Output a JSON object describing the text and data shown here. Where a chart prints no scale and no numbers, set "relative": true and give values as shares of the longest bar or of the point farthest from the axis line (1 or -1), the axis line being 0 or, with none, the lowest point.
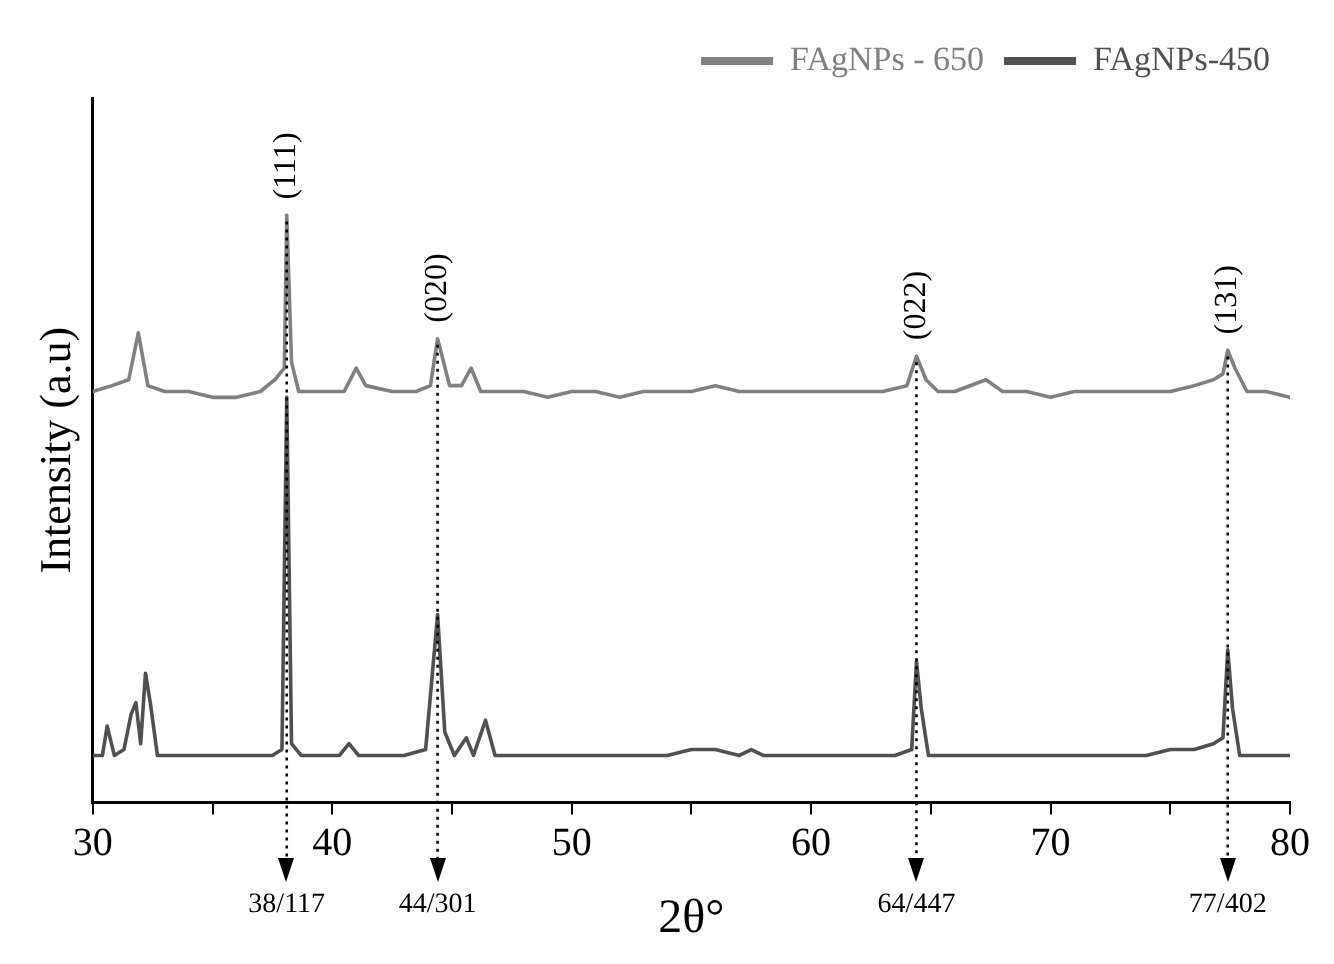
{
  "chart_data": {
    "type": "line",
    "xlabel": "2θ°",
    "ylabel": "Intensity (a.u)",
    "relative": true,
    "xlim": [
      30,
      80
    ],
    "xticks": [
      30,
      {
        "value": 35,
        "label": null
      },
      40,
      {
        "value": 45,
        "label": null
      },
      50,
      {
        "value": 55,
        "label": null
      },
      60,
      {
        "value": 65,
        "label": null
      },
      70,
      {
        "value": 75,
        "label": null
      },
      80
    ],
    "grid": false,
    "legend": "top right",
    "marker": "none",
    "line_style": "solid",
    "series": [
      {
        "name": "FAgNPs - 650",
        "color": "#808080",
        "x": [
          30,
          30.8,
          31.5,
          31.9,
          32.3,
          33,
          34,
          35,
          36,
          37,
          37.6,
          38.0,
          38.1,
          38.3,
          38.6,
          39.5,
          40.5,
          41.0,
          41.4,
          42.5,
          43.5,
          44.1,
          44.4,
          44.9,
          45.4,
          45.8,
          46.2,
          47,
          48,
          49,
          50,
          51,
          52,
          53,
          54,
          55,
          56,
          57,
          58,
          59,
          60,
          61,
          62,
          63,
          64.0,
          64.4,
          64.8,
          65.3,
          66,
          67.3,
          68,
          69,
          70,
          71,
          72,
          73,
          74,
          75,
          76,
          76.8,
          77.2,
          77.4,
          77.7,
          78.2,
          79,
          80
        ],
        "values": [
          0.7,
          0.71,
          0.72,
          0.8,
          0.71,
          0.7,
          0.7,
          0.69,
          0.69,
          0.7,
          0.72,
          0.74,
          1.0,
          0.75,
          0.7,
          0.7,
          0.7,
          0.74,
          0.71,
          0.7,
          0.7,
          0.71,
          0.79,
          0.71,
          0.71,
          0.74,
          0.7,
          0.7,
          0.7,
          0.69,
          0.7,
          0.7,
          0.69,
          0.7,
          0.7,
          0.7,
          0.71,
          0.7,
          0.7,
          0.7,
          0.7,
          0.7,
          0.7,
          0.7,
          0.71,
          0.76,
          0.72,
          0.7,
          0.7,
          0.72,
          0.7,
          0.7,
          0.69,
          0.7,
          0.7,
          0.7,
          0.7,
          0.7,
          0.71,
          0.72,
          0.73,
          0.77,
          0.74,
          0.7,
          0.7,
          0.69
        ]
      },
      {
        "name": "FAgNPs-450",
        "color": "#505050",
        "x": [
          30,
          30.4,
          30.6,
          30.9,
          31.3,
          31.6,
          31.8,
          32.0,
          32.2,
          32.4,
          32.7,
          33.5,
          35,
          36.5,
          37.5,
          37.9,
          38.1,
          38.3,
          38.7,
          39.5,
          40.3,
          40.7,
          41.1,
          42,
          43,
          43.9,
          44.4,
          44.7,
          45.1,
          45.6,
          45.9,
          46.4,
          46.8,
          48,
          50,
          52,
          54,
          55,
          56,
          57,
          57.5,
          58,
          60,
          62,
          63.5,
          64.2,
          64.4,
          64.6,
          64.9,
          66,
          68,
          70,
          72,
          74,
          75,
          76,
          76.8,
          77.2,
          77.4,
          77.6,
          77.9,
          78.5,
          80
        ],
        "values": [
          0.08,
          0.08,
          0.13,
          0.08,
          0.09,
          0.15,
          0.17,
          0.1,
          0.22,
          0.17,
          0.08,
          0.08,
          0.08,
          0.08,
          0.08,
          0.09,
          0.69,
          0.1,
          0.08,
          0.08,
          0.08,
          0.1,
          0.08,
          0.08,
          0.08,
          0.09,
          0.32,
          0.12,
          0.08,
          0.11,
          0.08,
          0.14,
          0.08,
          0.08,
          0.08,
          0.08,
          0.08,
          0.09,
          0.09,
          0.08,
          0.09,
          0.08,
          0.08,
          0.08,
          0.08,
          0.09,
          0.24,
          0.16,
          0.08,
          0.08,
          0.08,
          0.08,
          0.08,
          0.08,
          0.09,
          0.09,
          0.1,
          0.11,
          0.26,
          0.16,
          0.08,
          0.08,
          0.08
        ]
      }
    ],
    "ref_lines": [
      {
        "axis": "x",
        "value": 38.1,
        "label": "38/117",
        "line_style": "dotted",
        "color": "#000000"
      },
      {
        "axis": "x",
        "value": 44.4,
        "label": "44/301",
        "line_style": "dotted",
        "color": "#000000"
      },
      {
        "axis": "x",
        "value": 64.4,
        "label": "64/447",
        "line_style": "dotted",
        "color": "#000000"
      },
      {
        "axis": "x",
        "value": 77.4,
        "label": "77/402",
        "line_style": "dotted",
        "color": "#000000"
      }
    ],
    "annotations": [
      {
        "text": "(111)",
        "x": 38.1,
        "y": 1.0
      },
      {
        "text": "(020)",
        "x": 44.4,
        "y": 0.79
      },
      {
        "text": "(022)",
        "x": 64.4,
        "y": 0.76
      },
      {
        "text": "(131)",
        "x": 77.4,
        "y": 0.77
      }
    ]
  }
}
